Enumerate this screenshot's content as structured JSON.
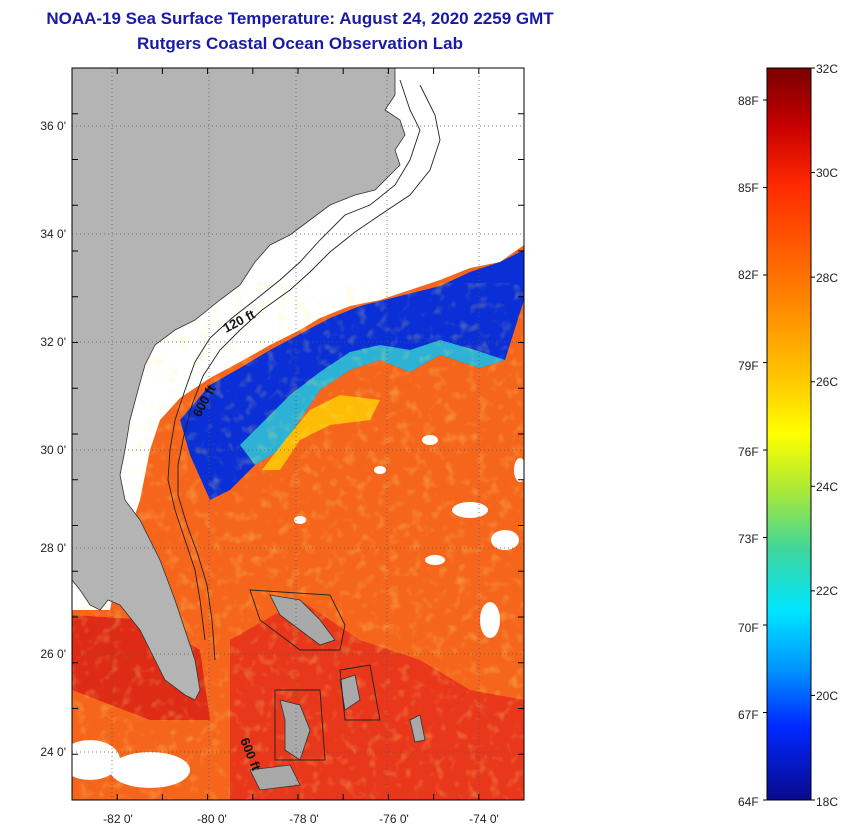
{
  "title": {
    "line1": "NOAA-19 Sea Surface Temperature:  August 24, 2020 2259 GMT",
    "line2": "Rutgers Coastal Ocean Observation Lab"
  },
  "map": {
    "lon_labels": [
      "-82 0'",
      "-80 0'",
      "-78 0'",
      "-76 0'",
      "-74 0'"
    ],
    "lat_labels": [
      "36 0'",
      "34 0'",
      "32 0'",
      "30 0'",
      "28 0'",
      "26 0'",
      "24 0'"
    ],
    "lon_range": [
      -83,
      -73
    ],
    "lat_range": [
      23,
      37
    ],
    "contour_labels": [
      "120 ft",
      "600 ft",
      "600 ft"
    ],
    "land_color": "#b4b4b4",
    "cloud_color": "#ffffff",
    "gridlines": "dotted"
  },
  "colorbar": {
    "celsius_labels": [
      "32C",
      "30C",
      "28C",
      "26C",
      "24C",
      "22C",
      "20C",
      "18C"
    ],
    "fahrenheit_labels": [
      "88F",
      "85F",
      "82F",
      "79F",
      "76F",
      "73F",
      "70F",
      "67F",
      "64F"
    ],
    "range_c": [
      18,
      32
    ]
  }
}
